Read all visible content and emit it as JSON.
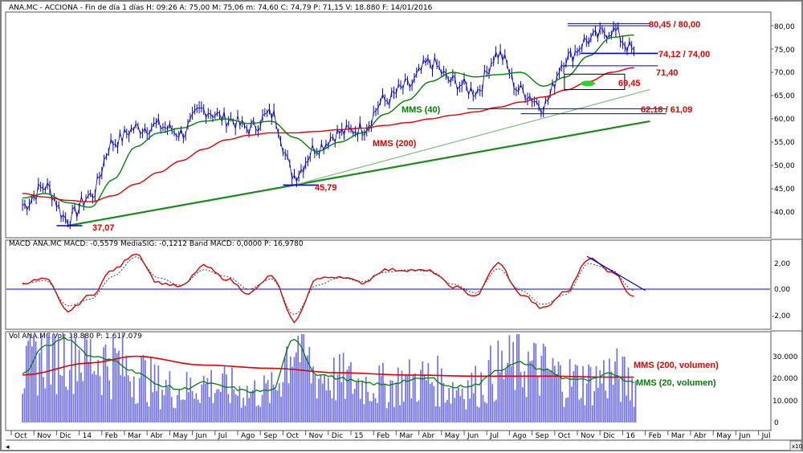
{
  "header": {
    "price": "ANA.MC - ACCIONA - Fin de día 1 días H: 09:26 A: 75,00 M: 75,06 m: 74,60 C: 74,79 P: 71,15 V: 18.880 F: 14/01/2016",
    "macd": "MACD  ANA.MC MACD: -0,5579 MediaSIG: -0,1212 Band MACD: 0,0000 P: 16,9780",
    "volume": "Vol  ANA.MC Vol: 18.880 P: 1.617.079"
  },
  "x_axis": {
    "labels": [
      "Oct",
      "Nov",
      "Dic",
      "14",
      "Feb",
      "Mar",
      "Abr",
      "May",
      "Jun",
      "Jul",
      "Ago",
      "Sep",
      "Oct",
      "Nov",
      "Dic",
      "15",
      "Feb",
      "Mar",
      "Abr",
      "May",
      "Jun",
      "Jul",
      "Ago",
      "Sep",
      "Oct",
      "Nov",
      "Dic",
      "16",
      "Feb",
      "Mar",
      "Abr",
      "May",
      "Jun",
      "Jul"
    ]
  },
  "corner_label": "x10",
  "colors": {
    "price": "#0000cc",
    "mms200": "#dd0000",
    "mms40": "#008000",
    "trendline": "#1a8a1a",
    "level_line": "#0000cc",
    "annotation_red": "#e00000",
    "annotation_green": "#008000",
    "volume_bars": "#7070ee",
    "macd_line": "#dd0000",
    "signal_line": "#444444"
  },
  "chart_data": [
    {
      "type": "line",
      "panel": "price",
      "y_ticks": [
        "80,00",
        "75,00",
        "70,00",
        "65,00",
        "60,00",
        "55,00",
        "50,00",
        "45,00",
        "40,00"
      ],
      "ylim": [
        35.5,
        82.5
      ],
      "x_range_months": "Oct 2013 - Jul 2016",
      "series": [
        {
          "name": "ANA.MC",
          "x": [
            "2013-10",
            "2013-11",
            "2013-12",
            "2014-01",
            "2014-02",
            "2014-03",
            "2014-04",
            "2014-05",
            "2014-06",
            "2014-07",
            "2014-08",
            "2014-09",
            "2014-10",
            "2014-11",
            "2014-12",
            "2015-01",
            "2015-02",
            "2015-03",
            "2015-04",
            "2015-05",
            "2015-06",
            "2015-07",
            "2015-08",
            "2015-09",
            "2015-10",
            "2015-11",
            "2015-12",
            "2016-01"
          ],
          "values": [
            41.5,
            45.5,
            38.5,
            43.5,
            55,
            58,
            58.5,
            57,
            62,
            60,
            58,
            61,
            48,
            54,
            57,
            58,
            64,
            67,
            72,
            68,
            66,
            74,
            66,
            63,
            73,
            77,
            79,
            74.8
          ]
        },
        {
          "name": "MMS (40)",
          "x": [
            "2013-10",
            "2013-11",
            "2013-12",
            "2014-01",
            "2014-02",
            "2014-03",
            "2014-04",
            "2014-05",
            "2014-06",
            "2014-07",
            "2014-08",
            "2014-09",
            "2014-10",
            "2014-11",
            "2014-12",
            "2015-01",
            "2015-02",
            "2015-03",
            "2015-04",
            "2015-05",
            "2015-06",
            "2015-07",
            "2015-08",
            "2015-09",
            "2015-10",
            "2015-11",
            "2015-12",
            "2016-01"
          ],
          "values": [
            43,
            44,
            42,
            41,
            47,
            54,
            57,
            58,
            59.5,
            60,
            59,
            59.5,
            56,
            53,
            55,
            57,
            61,
            64,
            68,
            70,
            69,
            69.5,
            70,
            67,
            69,
            73.5,
            77.5,
            78
          ]
        },
        {
          "name": "MMS (200)",
          "x": [
            "2013-10",
            "2013-11",
            "2013-12",
            "2014-01",
            "2014-02",
            "2014-03",
            "2014-04",
            "2014-05",
            "2014-06",
            "2014-07",
            "2014-08",
            "2014-09",
            "2014-10",
            "2014-11",
            "2014-12",
            "2015-01",
            "2015-02",
            "2015-03",
            "2015-04",
            "2015-05",
            "2015-06",
            "2015-07",
            "2015-08",
            "2015-09",
            "2015-10",
            "2015-11",
            "2015-12",
            "2016-01"
          ],
          "values": [
            44,
            43.2,
            42.5,
            42.2,
            43.5,
            46,
            48.5,
            51,
            53.5,
            55.5,
            56.5,
            57,
            57,
            57.3,
            57.7,
            58,
            58.6,
            59.2,
            60,
            60.8,
            61.5,
            62.5,
            63.6,
            64.7,
            66.2,
            68,
            70,
            71
          ]
        }
      ],
      "annotations": [
        {
          "text": "80,45 / 80,00",
          "value": 80.2,
          "color": "red"
        },
        {
          "text": "74,12 / 74,00",
          "value": 74.1,
          "color": "red"
        },
        {
          "text": "71,40",
          "value": 71.4,
          "color": "red"
        },
        {
          "text": "69,45",
          "value": 69.45,
          "color": "red"
        },
        {
          "text": "62,18 / 61,09",
          "value": 61.6,
          "color": "red"
        },
        {
          "text": "45,79",
          "value": 45.79,
          "color": "red"
        },
        {
          "text": "37,07",
          "value": 37.07,
          "color": "red"
        },
        {
          "text": "MMS (40)",
          "color": "green"
        },
        {
          "text": "MMS (200)",
          "color": "red"
        }
      ],
      "trendlines": [
        {
          "from": [
            "2013-12",
            37.07
          ],
          "to": [
            "2016-01",
            59.5
          ]
        },
        {
          "from": [
            "2014-10",
            45.79
          ],
          "to": [
            "2016-01",
            66.3
          ]
        }
      ]
    },
    {
      "type": "line",
      "panel": "macd",
      "y_ticks": [
        "2,00",
        "0,00",
        "-2,00"
      ],
      "ylim": [
        -2.9,
        3.2
      ],
      "series": [
        {
          "name": "MACD",
          "x": [
            "2013-10",
            "2013-11",
            "2013-12",
            "2014-01",
            "2014-02",
            "2014-03",
            "2014-04",
            "2014-05",
            "2014-06",
            "2014-07",
            "2014-08",
            "2014-09",
            "2014-10",
            "2014-11",
            "2014-12",
            "2015-01",
            "2015-02",
            "2015-03",
            "2015-04",
            "2015-05",
            "2015-06",
            "2015-07",
            "2015-08",
            "2015-09",
            "2015-10",
            "2015-11",
            "2015-12",
            "2016-01"
          ],
          "values": [
            0.5,
            0.8,
            -1.7,
            -0.5,
            1.5,
            2.8,
            0.5,
            0.2,
            1.8,
            0.8,
            -0.3,
            1.0,
            -2.5,
            0.8,
            1.0,
            0.5,
            1.5,
            1.5,
            1.4,
            0.2,
            -0.5,
            2.0,
            -0.4,
            -1.5,
            -0.2,
            2.4,
            1.4,
            -0.56
          ]
        },
        {
          "name": "MediaSIG",
          "x": [
            "2013-10",
            "2013-11",
            "2013-12",
            "2014-01",
            "2014-02",
            "2014-03",
            "2014-04",
            "2014-05",
            "2014-06",
            "2014-07",
            "2014-08",
            "2014-09",
            "2014-10",
            "2014-11",
            "2014-12",
            "2015-01",
            "2015-02",
            "2015-03",
            "2015-04",
            "2015-05",
            "2015-06",
            "2015-07",
            "2015-08",
            "2015-09",
            "2015-10",
            "2015-11",
            "2015-12",
            "2016-01"
          ],
          "values": [
            0.4,
            0.7,
            -1.3,
            -0.8,
            1.0,
            2.5,
            0.9,
            0.3,
            1.5,
            1.0,
            0.0,
            0.8,
            -2.0,
            0.3,
            0.9,
            0.6,
            1.3,
            1.5,
            1.4,
            0.4,
            -0.3,
            1.6,
            -0.1,
            -1.2,
            -0.4,
            2.0,
            1.5,
            -0.12
          ]
        }
      ]
    },
    {
      "type": "bar",
      "panel": "volume",
      "y_ticks": [
        "30.000",
        "20.000",
        "10.000",
        "0"
      ],
      "ylim": [
        -1000,
        41000
      ],
      "series": [
        {
          "name": "MMS (200, volumen)",
          "x": [
            "2013-10",
            "2014-01",
            "2014-03",
            "2014-06",
            "2014-09",
            "2014-12",
            "2015-03",
            "2015-06",
            "2015-09",
            "2015-12",
            "2016-01"
          ],
          "values": [
            21500,
            27000,
            30000,
            26000,
            24500,
            22500,
            21500,
            21000,
            21000,
            20500,
            20500
          ]
        },
        {
          "name": "MMS (20, volumen)",
          "x": [
            "2013-10",
            "2013-11",
            "2013-12",
            "2014-01",
            "2014-02",
            "2014-03",
            "2014-04",
            "2014-05",
            "2014-06",
            "2014-07",
            "2014-08",
            "2014-09",
            "2014-10",
            "2014-11",
            "2014-12",
            "2015-01",
            "2015-02",
            "2015-03",
            "2015-04",
            "2015-05",
            "2015-06",
            "2015-07",
            "2015-08",
            "2015-09",
            "2015-10",
            "2015-11",
            "2015-12",
            "2016-01"
          ],
          "values": [
            22000,
            35000,
            38000,
            30000,
            28000,
            23000,
            17000,
            15000,
            18000,
            16000,
            14000,
            14500,
            38000,
            22000,
            20000,
            18000,
            17000,
            19000,
            20000,
            16000,
            17000,
            24000,
            27000,
            24000,
            20000,
            19000,
            22000,
            18000
          ]
        }
      ],
      "last_bar": 18880
    }
  ]
}
